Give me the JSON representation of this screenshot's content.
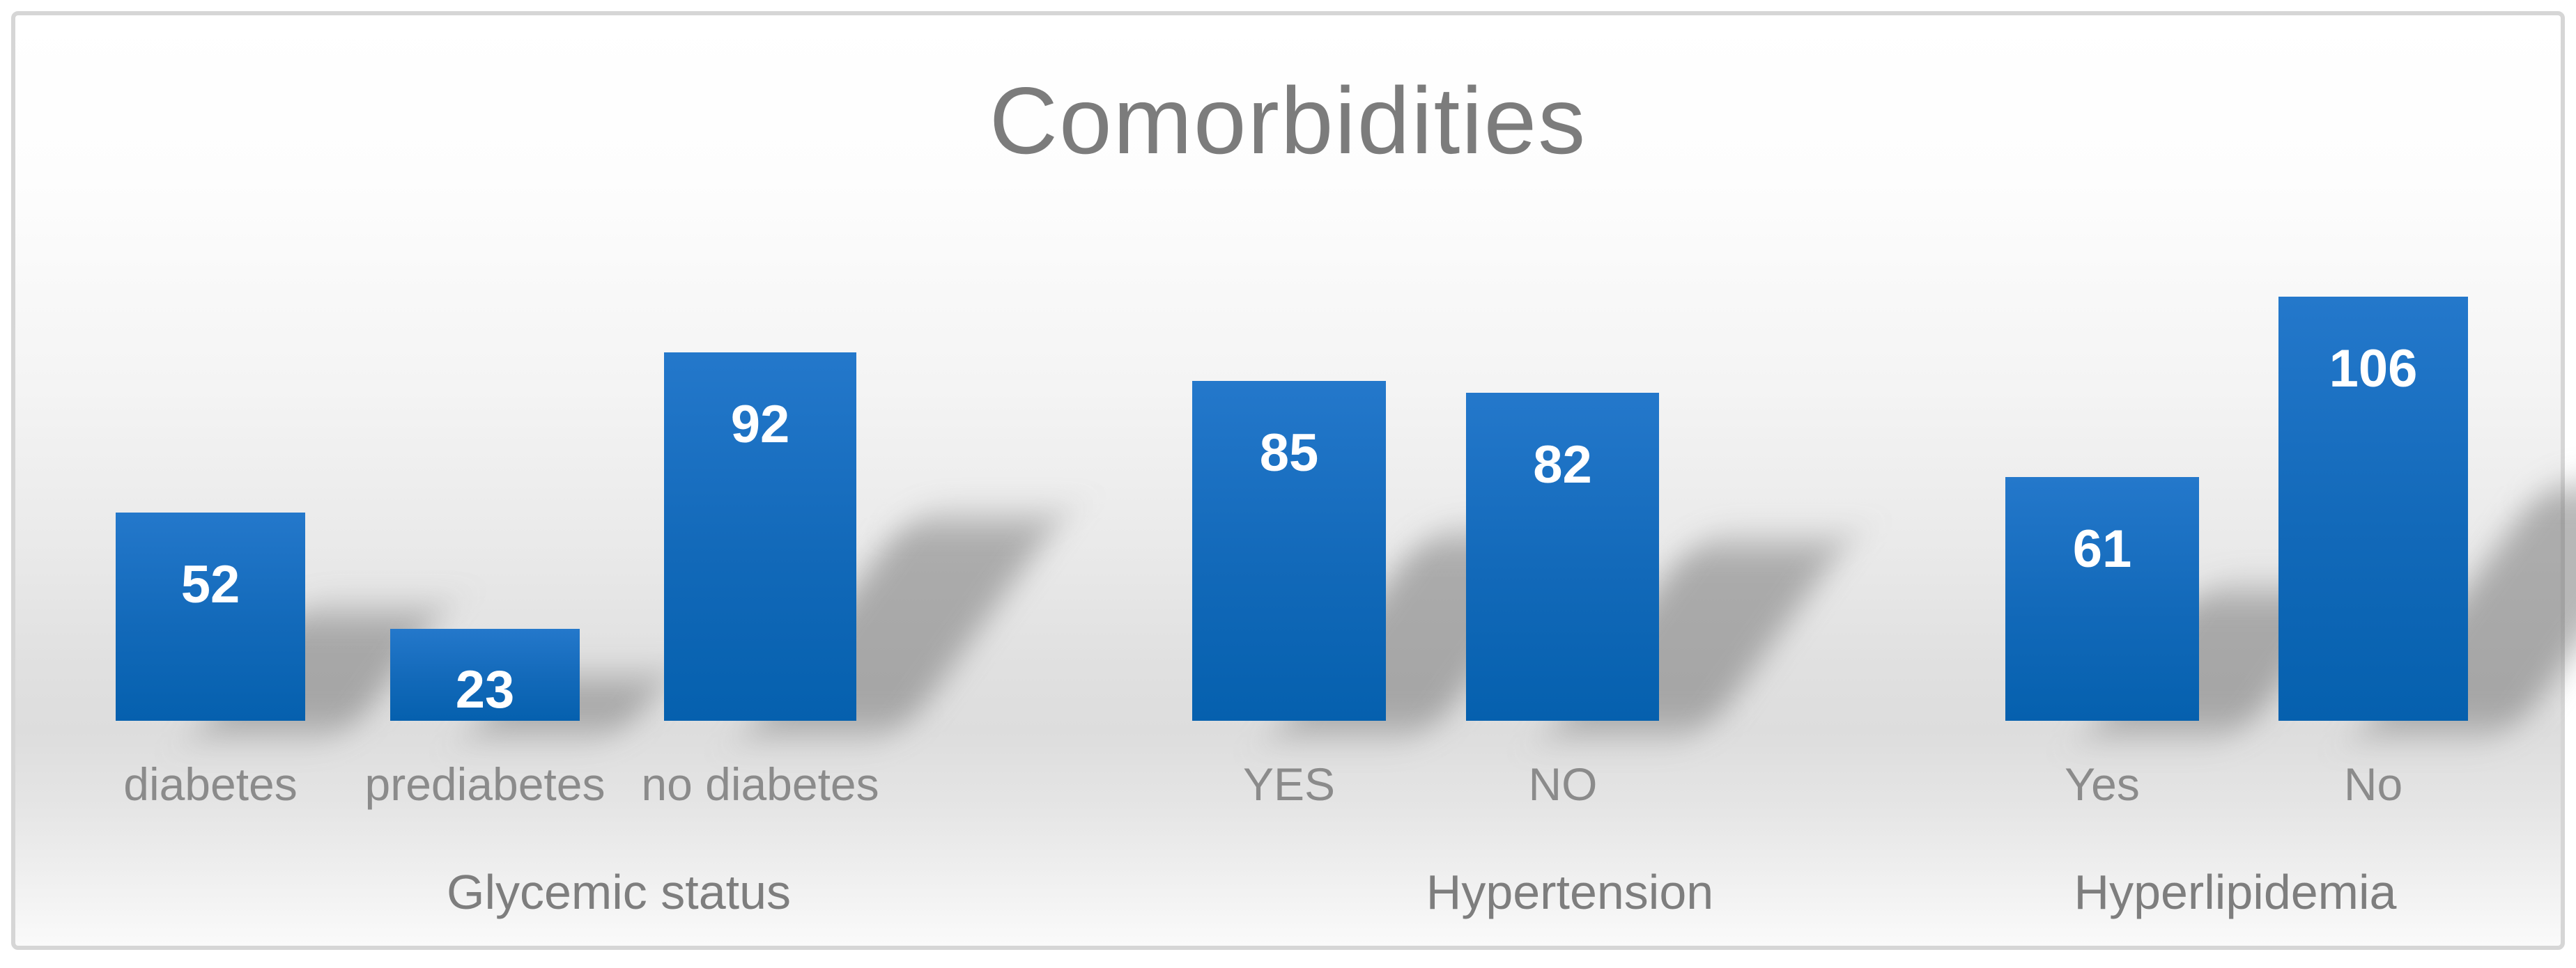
{
  "chart_data": {
    "type": "bar",
    "title": "Comorbidities",
    "groups": [
      {
        "label": "Glycemic status",
        "bars": [
          {
            "category": "diabetes",
            "value": 52
          },
          {
            "category": "prediabetes",
            "value": 23
          },
          {
            "category": "no diabetes",
            "value": 92
          }
        ]
      },
      {
        "label": "Hypertension",
        "bars": [
          {
            "category": "YES",
            "value": 85
          },
          {
            "category": "NO",
            "value": 82
          }
        ]
      },
      {
        "label": "Hyperlipidemia",
        "bars": [
          {
            "category": "Yes",
            "value": 61
          },
          {
            "category": "No",
            "value": 106
          }
        ]
      }
    ],
    "categories": [
      "diabetes",
      "prediabetes",
      "no diabetes",
      "YES",
      "NO",
      "Yes",
      "No"
    ],
    "values": [
      52,
      23,
      92,
      85,
      82,
      61,
      106
    ],
    "value_labels_position": "inside-top",
    "axis": {
      "y_visible": false,
      "grid": false,
      "ylim": [
        0,
        106
      ]
    },
    "legend": {
      "visible": false
    },
    "colors": {
      "bar_top": "#2478CB",
      "bar_bottom": "#0560AE",
      "value_label": "#FFFFFF",
      "title": "#7C7C7C",
      "category_label": "#8B8B8B",
      "group_label": "#7E7E7E",
      "frame_border": "#D6D6D6",
      "background_mid": "#DDDDDD"
    }
  }
}
